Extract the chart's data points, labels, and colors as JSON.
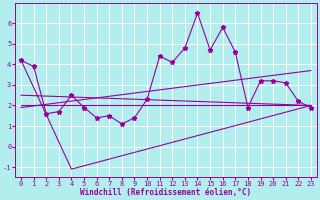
{
  "title": "",
  "xlabel": "Windchill (Refroidissement éolien,°C)",
  "ylabel": "",
  "background_color": "#b2eeee",
  "grid_color": "#ffffff",
  "line_color": "#990099",
  "xlim": [
    -0.5,
    23.5
  ],
  "ylim": [
    -1.5,
    7.0
  ],
  "xtick_labels": [
    "0",
    "1",
    "2",
    "3",
    "4",
    "5",
    "6",
    "7",
    "8",
    "9",
    "10",
    "11",
    "12",
    "13",
    "14",
    "15",
    "16",
    "17",
    "18",
    "19",
    "20",
    "21",
    "22",
    "23"
  ],
  "xticks": [
    0,
    1,
    2,
    3,
    4,
    5,
    6,
    7,
    8,
    9,
    10,
    11,
    12,
    13,
    14,
    15,
    16,
    17,
    18,
    19,
    20,
    21,
    22,
    23
  ],
  "yticks": [
    -1,
    0,
    1,
    2,
    3,
    4,
    5,
    6
  ],
  "main_x": [
    0,
    1,
    2,
    3,
    4,
    5,
    6,
    7,
    8,
    9,
    10,
    11,
    12,
    13,
    14,
    15,
    16,
    17,
    18,
    19,
    20,
    21,
    22,
    23
  ],
  "main_y": [
    4.2,
    3.9,
    1.6,
    1.7,
    2.5,
    1.9,
    1.4,
    1.5,
    1.1,
    1.4,
    2.3,
    4.4,
    4.1,
    4.8,
    6.5,
    4.7,
    5.8,
    4.6,
    1.9,
    3.2,
    3.2,
    3.1,
    2.2,
    1.9
  ],
  "line1_x": [
    0,
    4,
    23
  ],
  "line1_y": [
    4.2,
    -1.1,
    2.0
  ],
  "line2_x": [
    0,
    23
  ],
  "line2_y": [
    2.0,
    2.0
  ],
  "line3_x": [
    0,
    23
  ],
  "line3_y": [
    1.9,
    3.7
  ],
  "line4_x": [
    0,
    23
  ],
  "line4_y": [
    2.5,
    2.0
  ],
  "tick_fontsize": 5.0,
  "xlabel_fontsize": 5.5,
  "marker_size": 3.5
}
